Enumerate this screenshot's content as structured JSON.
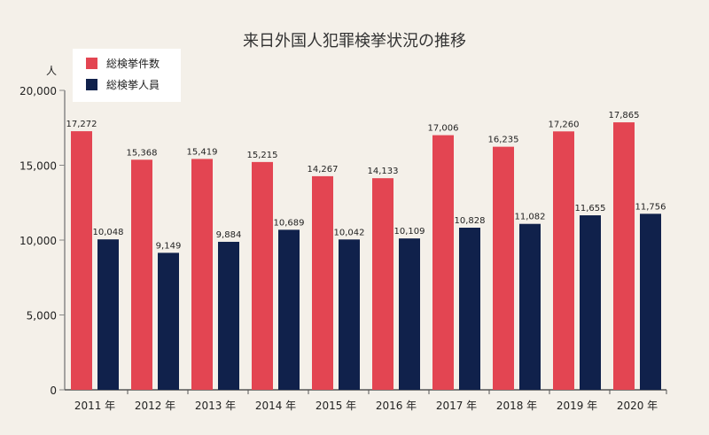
{
  "chart_data": {
    "type": "bar",
    "title": "来日外国人犯罪検挙状況の推移",
    "ylabel": "人",
    "xlabel": "",
    "ylim": [
      0,
      20000
    ],
    "yticks": [
      "0",
      "5,000",
      "10,000",
      "15,000",
      "20,000"
    ],
    "ytick_values": [
      0,
      5000,
      10000,
      15000,
      20000
    ],
    "categories": [
      "2011 年",
      "2012 年",
      "2013 年",
      "2014 年",
      "2015 年",
      "2016 年",
      "2017 年",
      "2018 年",
      "2019 年",
      "2020 年"
    ],
    "series": [
      {
        "name": "総検挙件数",
        "color": "#e34552",
        "values": [
          17272,
          15368,
          15419,
          15215,
          14267,
          14133,
          17006,
          16235,
          17260,
          17865
        ]
      },
      {
        "name": "総検挙人員",
        "color": "#10214b",
        "values": [
          10048,
          9149,
          9884,
          10689,
          10042,
          10109,
          10828,
          11082,
          11655,
          11756
        ]
      }
    ],
    "legend_position": "top-left",
    "grid": false,
    "data_labels": true
  }
}
